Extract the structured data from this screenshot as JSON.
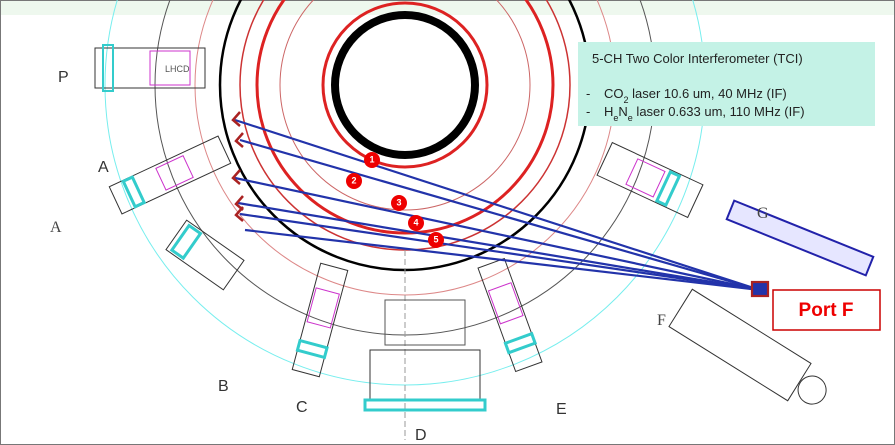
{
  "ports": [
    "P",
    "A",
    "A",
    "B",
    "C",
    "D",
    "E",
    "F",
    "G"
  ],
  "lhcd": "LHCD",
  "info_box": {
    "title": "5-CH Two Color Interferometer  (TCI)",
    "bullet": "-",
    "lines": [
      {
        "parts": [
          "CO",
          "2",
          " laser 10.6 um, 40 MHz (IF)"
        ]
      },
      {
        "parts": [
          "H",
          "e",
          "N",
          "e",
          " laser 0.633 um, 110 MHz (IF)"
        ]
      }
    ]
  },
  "channels": [
    "1",
    "2",
    "3",
    "4",
    "5"
  ],
  "callout": "Port F"
}
